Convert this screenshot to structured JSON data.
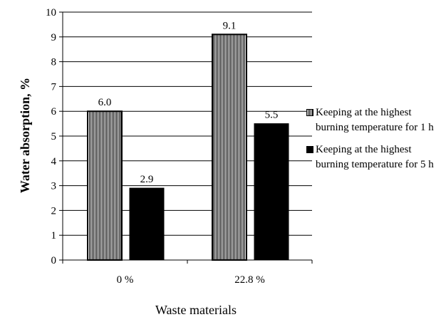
{
  "chart_data": {
    "type": "bar",
    "title": "",
    "xlabel": "Waste materials",
    "ylabel": "Water absorption, %",
    "ylim": [
      0,
      10
    ],
    "yticks": [
      "0",
      "1",
      "2",
      "3",
      "4",
      "5",
      "6",
      "7",
      "8",
      "9",
      "10"
    ],
    "categories": [
      "0 %",
      "22.8 %"
    ],
    "series": [
      {
        "name": "Keeping at the highest burning temperature for 1 h",
        "values": [
          6.0,
          9.1
        ],
        "labels": [
          "6.0",
          "9.1"
        ],
        "fill": "vertical-hatch",
        "color": "#000000"
      },
      {
        "name": "Keeping at the highest burning temperature for 5 h",
        "values": [
          2.9,
          5.5
        ],
        "labels": [
          "2.9",
          "5.5"
        ],
        "fill": "solid",
        "color": "#000000"
      }
    ],
    "grid": true,
    "legend_position": "right"
  }
}
